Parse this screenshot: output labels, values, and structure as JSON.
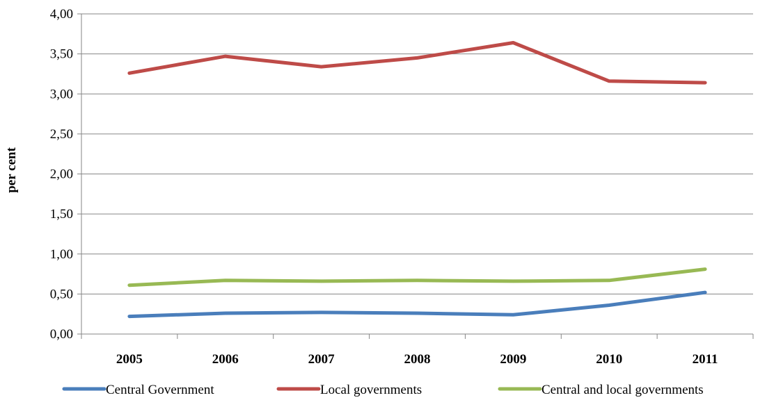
{
  "chart_data": {
    "type": "line",
    "title": "",
    "xlabel": "",
    "ylabel": "per cent",
    "ylim": [
      0,
      4
    ],
    "yticks": [
      "0,00",
      "0,50",
      "1,00",
      "1,50",
      "2,00",
      "2,50",
      "3,00",
      "3,50",
      "4,00"
    ],
    "categories": [
      "2005",
      "2006",
      "2007",
      "2008",
      "2009",
      "2010",
      "2011"
    ],
    "grid": "horizontal",
    "legend": "bottom",
    "series": [
      {
        "name": "Central Government",
        "color": "#4a7ebb",
        "values": [
          0.22,
          0.26,
          0.27,
          0.26,
          0.24,
          0.36,
          0.52
        ]
      },
      {
        "name": "Local governments",
        "color": "#be4b48",
        "values": [
          3.26,
          3.47,
          3.34,
          3.45,
          3.64,
          3.16,
          3.14
        ]
      },
      {
        "name": "Central and local governments",
        "color": "#98b954",
        "values": [
          0.61,
          0.67,
          0.66,
          0.67,
          0.66,
          0.67,
          0.81
        ]
      }
    ]
  }
}
